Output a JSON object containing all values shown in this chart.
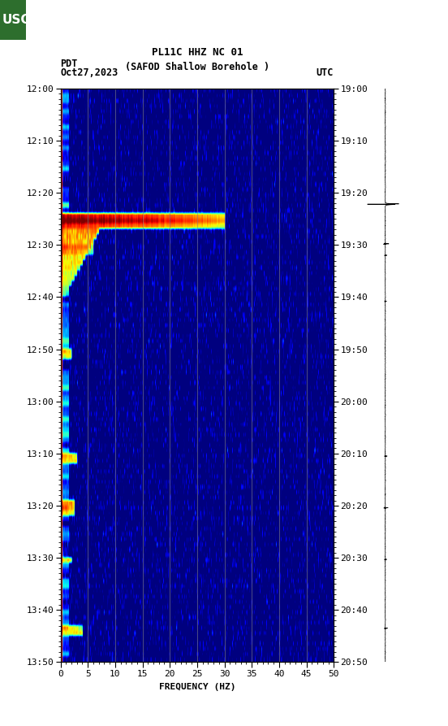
{
  "title_line1": "PL11C HHZ NC 01",
  "title_line2": "(SAFOD Shallow Borehole )",
  "date": "Oct27,2023",
  "timezone_left": "PDT",
  "timezone_right": "UTC",
  "xlabel": "FREQUENCY (HZ)",
  "freq_min": 0,
  "freq_max": 50,
  "ytick_labels_left": [
    "12:00",
    "12:10",
    "12:20",
    "12:30",
    "12:40",
    "12:50",
    "13:00",
    "13:10",
    "13:20",
    "13:30",
    "13:40",
    "13:50"
  ],
  "ytick_labels_right": [
    "19:00",
    "19:10",
    "19:20",
    "19:30",
    "19:40",
    "19:50",
    "20:00",
    "20:10",
    "20:20",
    "20:30",
    "20:40",
    "20:50"
  ],
  "vline_positions": [
    5,
    10,
    15,
    20,
    25,
    30,
    35,
    40,
    45
  ],
  "fig_bg_color": "#ffffff",
  "usgs_green": "#2d6e2d",
  "n_time": 110,
  "n_freq": 500
}
